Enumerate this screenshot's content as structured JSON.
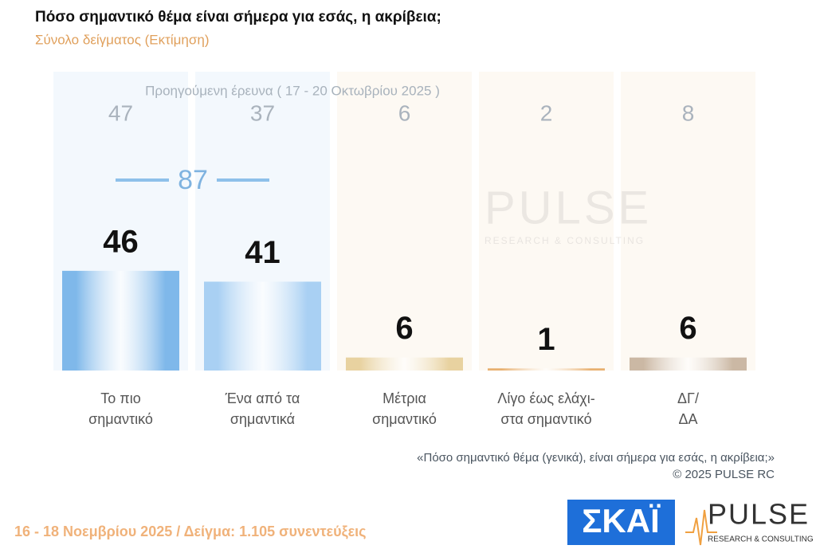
{
  "chart_data": {
    "type": "bar",
    "title": "Πόσο σημαντικό θέμα είναι σήμερα για εσάς, η ακρίβεια;",
    "subtitle": "Σύνολο δείγματος   (Εκτίμηση)",
    "categories": [
      [
        "Το πιο",
        "σημαντικό"
      ],
      [
        "Ένα από τα",
        "σημαντικά"
      ],
      [
        "Μέτρια",
        "σημαντικό"
      ],
      [
        "Λίγο έως ελάχι-",
        "στα σημαντικό"
      ],
      [
        "ΔΓ/",
        "ΔΑ"
      ]
    ],
    "values": [
      46,
      41,
      6,
      1,
      6
    ],
    "colors": [
      "#7fb8ea",
      "#a9d0f3",
      "#e8d2a0",
      "#e8b070",
      "#cbb8a4"
    ],
    "previous": {
      "label": "Προηγούμενη έρευνα ( 17 - 20 Οκτωβρίου 2025 )",
      "values": [
        47,
        37,
        6,
        2,
        8
      ]
    },
    "combined": 87
  },
  "note": "«Πόσο σημαντικό θέμα (γενικά), είναι σήμερα για εσάς, η ακρίβεια;»",
  "copyright": "©  2025  PULSE RC",
  "footer": "16 - 18 Νοεμβρίου 2025  /  Δείγμα:  1.105 συνεντεύξεις",
  "logos": {
    "skai": "ΣΚΑΪ",
    "pulse": "PULSE",
    "pulse_sub": "RESEARCH & CONSULTING"
  }
}
